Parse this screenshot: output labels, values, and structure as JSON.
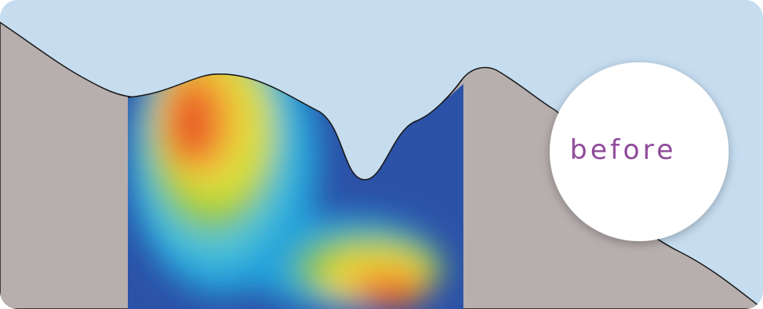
{
  "badge": {
    "label": "before"
  },
  "colors": {
    "sky": "#c6ddf0",
    "terrain": "#b7aeae",
    "outline": "#1a1a1a",
    "badge_fill": "#ffffff",
    "badge_text": "#8f4a9b",
    "field_low": "#2c52a8",
    "field_high": "#e8582a"
  },
  "icons": {
    "badge": "circle-badge"
  }
}
